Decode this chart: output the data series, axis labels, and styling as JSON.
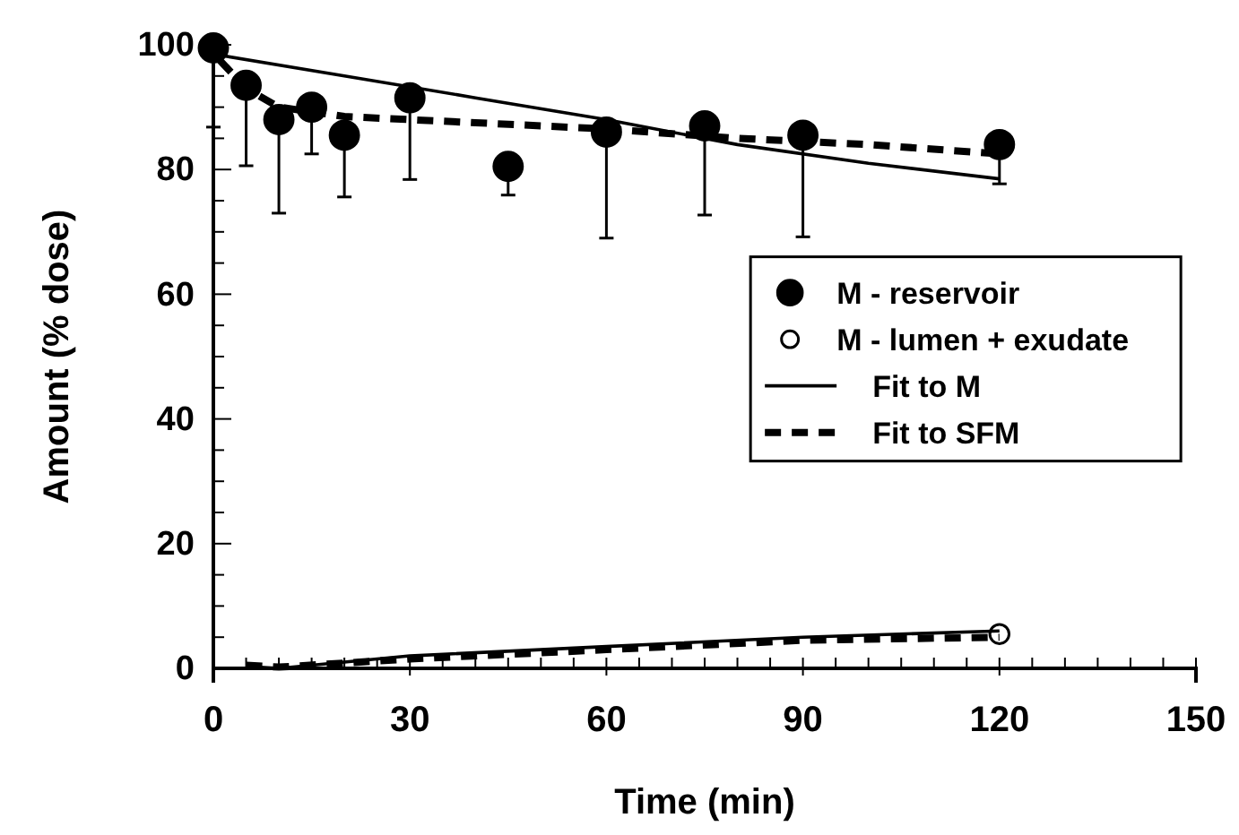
{
  "chart_data": {
    "type": "scatter",
    "xlabel": "Time (min)",
    "ylabel": "Amount (% dose)",
    "xlim": [
      0,
      150
    ],
    "ylim": [
      0,
      100
    ],
    "xticks": [
      0,
      {
        "value": 5,
        "label": null
      },
      {
        "value": 10,
        "label": null
      },
      {
        "value": 15,
        "label": null
      },
      {
        "value": 20,
        "label": null
      },
      {
        "value": 25,
        "label": null
      },
      30,
      {
        "value": 35,
        "label": null
      },
      {
        "value": 40,
        "label": null
      },
      {
        "value": 45,
        "label": null
      },
      {
        "value": 50,
        "label": null
      },
      {
        "value": 55,
        "label": null
      },
      60,
      {
        "value": 65,
        "label": null
      },
      {
        "value": 70,
        "label": null
      },
      {
        "value": 75,
        "label": null
      },
      {
        "value": 80,
        "label": null
      },
      {
        "value": 85,
        "label": null
      },
      90,
      {
        "value": 95,
        "label": null
      },
      {
        "value": 100,
        "label": null
      },
      {
        "value": 105,
        "label": null
      },
      {
        "value": 110,
        "label": null
      },
      {
        "value": 115,
        "label": null
      },
      120,
      {
        "value": 125,
        "label": null
      },
      {
        "value": 130,
        "label": null
      },
      {
        "value": 135,
        "label": null
      },
      {
        "value": 140,
        "label": null
      },
      {
        "value": 145,
        "label": null
      },
      150
    ],
    "yticks": [
      0,
      {
        "value": 5,
        "label": null
      },
      {
        "value": 10,
        "label": null
      },
      {
        "value": 15,
        "label": null
      },
      20,
      {
        "value": 25,
        "label": null
      },
      {
        "value": 30,
        "label": null
      },
      {
        "value": 35,
        "label": null
      },
      40,
      {
        "value": 45,
        "label": null
      },
      {
        "value": 50,
        "label": null
      },
      {
        "value": 55,
        "label": null
      },
      60,
      {
        "value": 65,
        "label": null
      },
      {
        "value": 70,
        "label": null
      },
      {
        "value": 75,
        "label": null
      },
      80,
      {
        "value": 85,
        "label": null
      },
      {
        "value": 90,
        "label": null
      },
      {
        "value": 95,
        "label": null
      },
      100
    ],
    "grid": false,
    "legend": "right",
    "series": [
      {
        "name": "M - reservoir",
        "marker": "circle",
        "color": "#000000",
        "x": [
          0,
          5,
          10,
          15,
          20,
          30,
          45,
          60,
          75,
          90,
          120
        ],
        "values": [
          99.5,
          93.5,
          88,
          90,
          85.5,
          91.5,
          80.5,
          86,
          87,
          85.5,
          84
        ],
        "errors": [
          [
            86.8,
            99.5
          ],
          [
            80.6,
            93.5
          ],
          [
            73,
            88
          ],
          [
            82.5,
            90
          ],
          [
            75.6,
            85.5
          ],
          [
            78.4,
            91.5
          ],
          [
            75.9,
            80.5
          ],
          [
            69,
            86
          ],
          [
            72.7,
            87
          ],
          [
            69.2,
            85.5
          ],
          [
            77.7,
            84
          ]
        ]
      },
      {
        "name": "M - lumen + exudate",
        "marker": "circle",
        "color": "#ffffff",
        "x": [
          120
        ],
        "values": [
          5.5
        ]
      },
      {
        "name": "Fit to M",
        "type": "line",
        "line_style": "solid",
        "color": "#000000",
        "x": [
          0,
          20,
          40,
          60,
          80,
          100,
          120
        ],
        "values": [
          98.5,
          95,
          91.5,
          88,
          84,
          81,
          78.5
        ]
      },
      {
        "name": "Fit to SFM",
        "type": "line",
        "line_style": "dashed",
        "color": "#000000",
        "x": [
          1,
          5,
          10,
          20,
          40,
          60,
          80,
          100,
          120
        ],
        "values": [
          97.5,
          93,
          90,
          88.5,
          87.5,
          86.5,
          85,
          84,
          82.5
        ]
      },
      {
        "type": "line",
        "line_style": "solid",
        "color": "#000000",
        "x": [
          5,
          10,
          30,
          60,
          90,
          120
        ],
        "values": [
          0.3,
          0,
          2,
          3.5,
          5,
          6
        ]
      },
      {
        "type": "line",
        "line_style": "dashed",
        "color": "#000000",
        "x": [
          5,
          10,
          30,
          60,
          90,
          120
        ],
        "values": [
          0.5,
          0.2,
          1.5,
          3,
          4.5,
          5
        ]
      }
    ]
  }
}
